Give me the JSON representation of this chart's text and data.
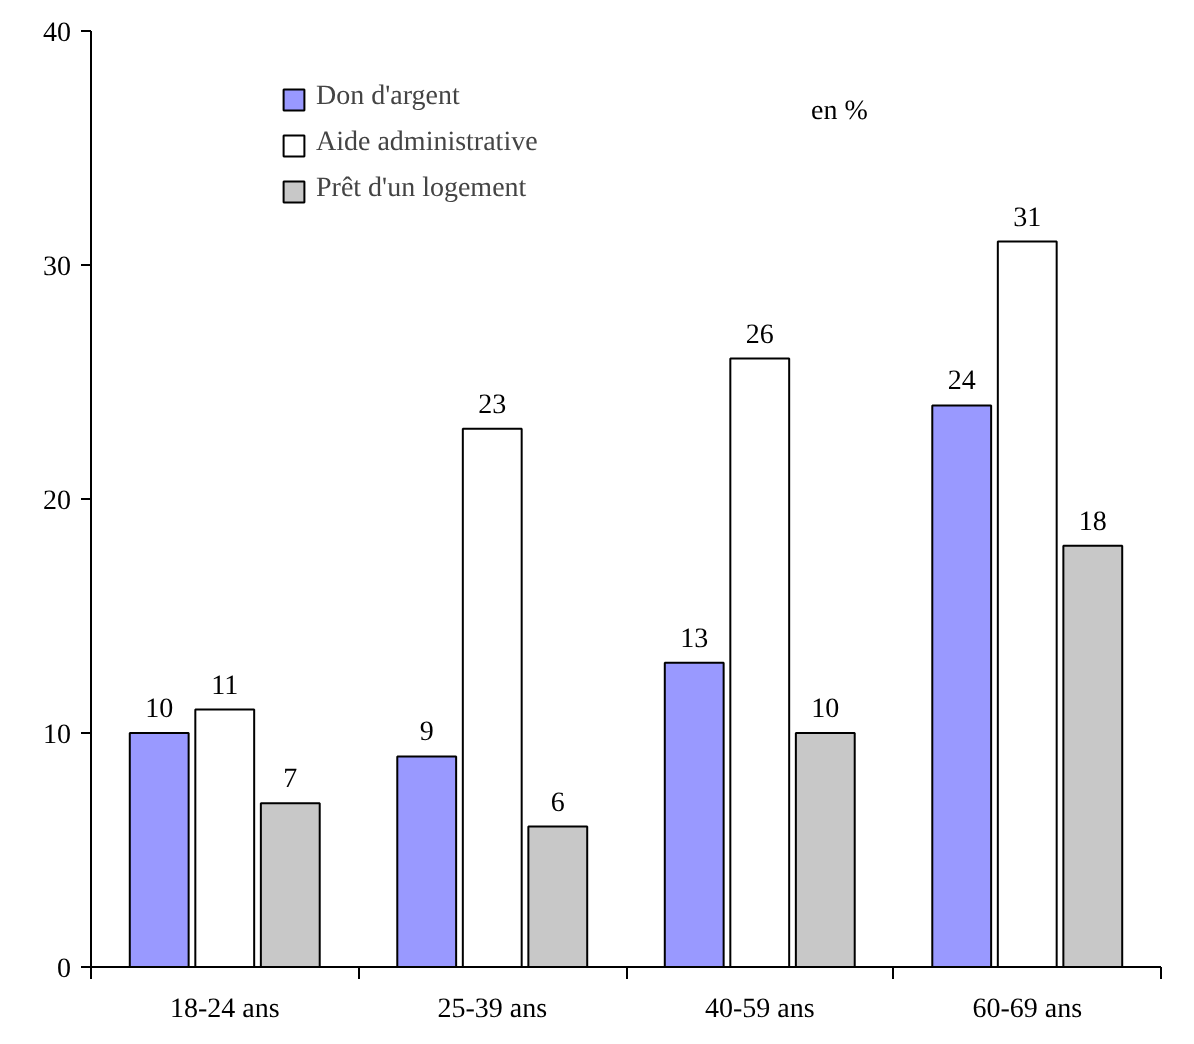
{
  "chart_data": {
    "type": "bar",
    "categories": [
      "18-24 ans",
      "25-39 ans",
      "40-59 ans",
      "60-69 ans"
    ],
    "series": [
      {
        "name": "Don d'argent",
        "color": "#9999ff",
        "values": [
          10,
          9,
          13,
          24
        ]
      },
      {
        "name": "Aide administrative",
        "color": "#ffffff",
        "values": [
          11,
          23,
          26,
          31
        ]
      },
      {
        "name": "Prêt d'un logement",
        "color": "#c8c8c8",
        "values": [
          7,
          6,
          10,
          18
        ]
      }
    ],
    "ylim": [
      0,
      40
    ],
    "yticks": [
      0,
      10,
      20,
      30,
      40
    ],
    "grid": false,
    "legend": "top",
    "data_labels": true,
    "annotations": [
      "en %"
    ]
  }
}
